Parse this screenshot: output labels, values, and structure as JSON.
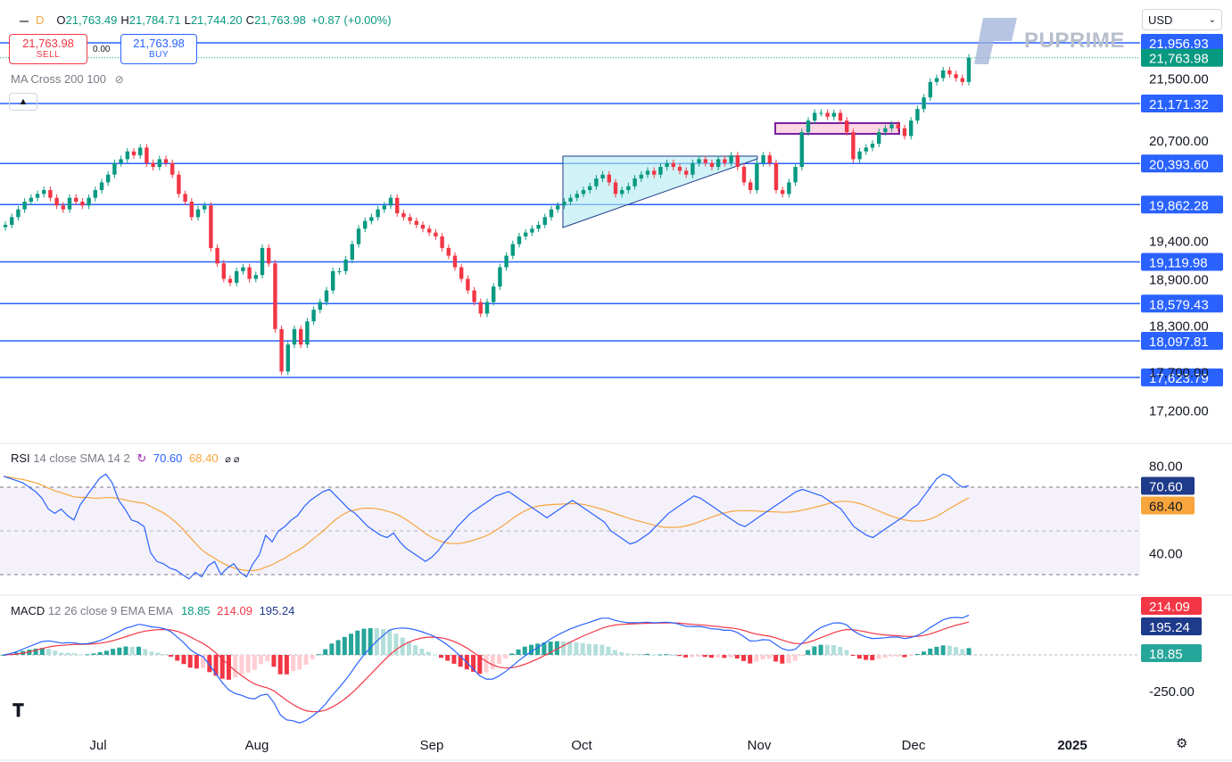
{
  "toolbar": {
    "interval": "D",
    "o_label": "O",
    "o_value": "21,763.49",
    "h_label": "H",
    "h_value": "21,784.71",
    "l_label": "L",
    "l_value": "21,744.20",
    "c_label": "C",
    "c_value": "21,763.98",
    "change": "+0.87 (+0.00%)"
  },
  "trade": {
    "sell_price": "21,763.98",
    "sell_label": "SELL",
    "spread": "0.00",
    "buy_price": "21,763.98",
    "buy_label": "BUY"
  },
  "indicator_ma": "MA Cross 200 100",
  "currency": "USD",
  "brand": "PUPRIME",
  "rsi_title": {
    "name": "RSI",
    "params": "14 close SMA 14 2",
    "value1": "70.60",
    "value2": "68.40"
  },
  "macd_title": {
    "name": "MACD",
    "params": "12 26 close 9 EMA EMA",
    "hist": "18.85",
    "macd": "214.09",
    "signal": "195.24"
  },
  "colors": {
    "up": "#089981",
    "down": "#f23645",
    "level_line": "#2962ff",
    "rsi_line": "#2962ff",
    "rsi_ma": "#f7a53c",
    "macd_line": "#2962ff",
    "signal_line": "#f23645"
  },
  "chart_data": {
    "type": "candlestick",
    "x_ticks": [
      "Jul",
      "Aug",
      "Sep",
      "Oct",
      "Nov",
      "Dec",
      "2025"
    ],
    "price_ticks": [
      "21,500.00",
      "20,700.00",
      "19,400.00",
      "18,900.00",
      "18,300.00",
      "17,700.00",
      "17,200.00"
    ],
    "level_lines": [
      21956.93,
      21171.32,
      20393.6,
      19862.28,
      19119.98,
      18579.43,
      18097.81,
      17623.79
    ],
    "current_price": 21763.98,
    "price_range": [
      16900,
      22300
    ],
    "close_series": [
      19600,
      19700,
      19800,
      19900,
      19950,
      20000,
      20050,
      19950,
      19850,
      19800,
      19950,
      19900,
      19850,
      19950,
      20050,
      20150,
      20250,
      20400,
      20450,
      20550,
      20500,
      20600,
      20400,
      20350,
      20450,
      20400,
      20250,
      20000,
      19900,
      19700,
      19800,
      19850,
      19300,
      19100,
      18900,
      18850,
      19000,
      19050,
      18900,
      18950,
      19300,
      19100,
      18250,
      17700,
      18050,
      18250,
      18050,
      18350,
      18500,
      18600,
      18750,
      19000,
      19000,
      19150,
      19350,
      19550,
      19650,
      19700,
      19800,
      19850,
      19950,
      19750,
      19700,
      19650,
      19600,
      19550,
      19500,
      19450,
      19300,
      19200,
      19050,
      18900,
      18750,
      18600,
      18450,
      18600,
      18800,
      19050,
      19200,
      19350,
      19450,
      19500,
      19550,
      19600,
      19700,
      19800,
      19850,
      19900,
      19950,
      20000,
      20050,
      20100,
      20200,
      20250,
      20150,
      20000,
      20050,
      20100,
      20200,
      20250,
      20300,
      20250,
      20350,
      20400,
      20350,
      20300,
      20250,
      20400,
      20450,
      20400,
      20350,
      20450,
      20400,
      20500,
      20350,
      20150,
      20050,
      20400,
      20500,
      20400,
      20050,
      20000,
      20150,
      20350,
      20800,
      20950,
      21050,
      21050,
      21000,
      21050,
      20950,
      20800,
      20450,
      20550,
      20600,
      20650,
      20800,
      20850,
      20900,
      20850,
      20750,
      20950,
      21100,
      21250,
      21450,
      21500,
      21600,
      21550,
      21500,
      21450,
      21764
    ],
    "price_ticks_values": [
      21500,
      20700,
      19400,
      18900,
      18300,
      17700,
      17200
    ],
    "rsi": {
      "value": 70.6,
      "sma": 68.4,
      "ticks": [
        "80.00",
        "40.00"
      ],
      "ticks_values": [
        80,
        40
      ],
      "band": [
        70,
        30
      ]
    },
    "rsi_series": [
      75,
      74,
      73,
      72,
      70,
      68,
      65,
      60,
      58,
      60,
      57,
      55,
      62,
      66,
      70,
      74,
      76,
      72,
      64,
      60,
      55,
      54,
      52,
      40,
      36,
      35,
      33,
      32,
      30,
      28,
      31,
      29,
      34,
      36,
      30,
      33,
      35,
      31,
      29,
      35,
      39,
      48,
      45,
      50,
      52,
      55,
      57,
      61,
      64,
      66,
      68,
      69,
      66,
      63,
      60,
      58,
      55,
      52,
      50,
      48,
      47,
      49,
      45,
      42,
      40,
      38,
      36,
      38,
      41,
      45,
      48,
      52,
      55,
      58,
      60,
      62,
      64,
      66,
      67,
      68,
      66,
      64,
      62,
      60,
      58,
      56,
      58,
      60,
      62,
      64,
      62,
      60,
      58,
      56,
      54,
      50,
      48,
      46,
      44,
      45,
      47,
      49,
      52,
      55,
      58,
      60,
      62,
      64,
      66,
      65,
      63,
      61,
      59,
      57,
      55,
      53,
      52,
      54,
      56,
      58,
      60,
      62,
      64,
      66,
      68,
      69,
      68,
      67,
      66,
      64,
      62,
      60,
      56,
      52,
      50,
      48,
      47,
      49,
      51,
      53,
      55,
      57,
      60,
      62,
      66,
      70,
      74,
      76,
      75,
      72,
      70,
      70.6
    ],
    "macd": {
      "macd": 214.09,
      "signal": 195.24,
      "hist": 18.85,
      "ticks": [
        "-250.00"
      ],
      "ticks_values": [
        -250
      ]
    }
  }
}
